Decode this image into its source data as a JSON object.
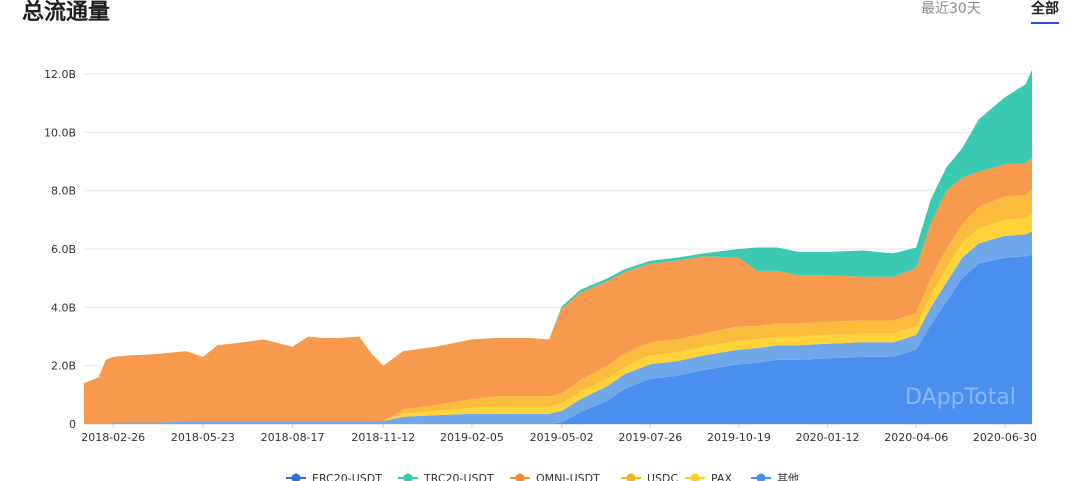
{
  "header": {
    "title": "总流通量",
    "tabs": [
      {
        "label": "最近30天",
        "active": false
      },
      {
        "label": "全部",
        "active": true
      }
    ]
  },
  "watermark": "DAppTotal",
  "chart_data": {
    "type": "area",
    "stacked": true,
    "title": "",
    "xlabel": "",
    "ylabel": "",
    "ylim": [
      0,
      12
    ],
    "y_unit": "B",
    "y_ticks": [
      "0",
      "2.0B",
      "4.0B",
      "6.0B",
      "8.0B",
      "10.0B",
      "12.0B"
    ],
    "x_ticks": [
      "2018-02-26",
      "2018-05-23",
      "2018-08-17",
      "2018-11-12",
      "2019-02-05",
      "2019-05-02",
      "2019-07-26",
      "2019-10-19",
      "2020-01-12",
      "2020-04-06",
      "2020-06-30"
    ],
    "grid": "horizontal",
    "legend_position": "bottom",
    "x": [
      "2018-01-29",
      "2018-02-05",
      "2018-02-12",
      "2018-02-19",
      "2018-02-26",
      "2018-03-12",
      "2018-04-09",
      "2018-05-07",
      "2018-05-23",
      "2018-06-06",
      "2018-07-01",
      "2018-07-20",
      "2018-08-17",
      "2018-09-01",
      "2018-09-15",
      "2018-10-01",
      "2018-10-20",
      "2018-11-01",
      "2018-11-12",
      "2018-12-01",
      "2019-01-01",
      "2019-02-05",
      "2019-03-01",
      "2019-04-01",
      "2019-04-20",
      "2019-05-02",
      "2019-05-20",
      "2019-06-15",
      "2019-07-01",
      "2019-07-26",
      "2019-08-20",
      "2019-09-15",
      "2019-10-19",
      "2019-11-05",
      "2019-11-25",
      "2019-12-15",
      "2020-01-12",
      "2020-02-15",
      "2020-03-15",
      "2020-04-06",
      "2020-04-20",
      "2020-05-05",
      "2020-05-20",
      "2020-06-05",
      "2020-06-30",
      "2020-07-20",
      "2020-07-26"
    ],
    "series": [
      {
        "name": "ERC20-USDT",
        "color": "#2f6fd1",
        "values": [
          0,
          0,
          0,
          0,
          0,
          0,
          0,
          0,
          0,
          0,
          0,
          0,
          0,
          0,
          0,
          0,
          0,
          0,
          0,
          0,
          0,
          0,
          0,
          0,
          0,
          0,
          0,
          0,
          0,
          0,
          0,
          0,
          0,
          0,
          0,
          0,
          0,
          0,
          0,
          0,
          0,
          0,
          0,
          0,
          0,
          0,
          0
        ]
      },
      {
        "name": "TRC20-USDT",
        "color": "#3cc9b2",
        "values": [
          0,
          0,
          0,
          0,
          0,
          0,
          0,
          0,
          0,
          0,
          0,
          0,
          0,
          0,
          0,
          0,
          0,
          0,
          0,
          0,
          0,
          0,
          0,
          0,
          0,
          0.08,
          0.1,
          0.1,
          0.1,
          0.1,
          0.1,
          0.1,
          0.3,
          0.8,
          0.8,
          0.8,
          0.8,
          0.9,
          0.8,
          0.7,
          0.8,
          0.8,
          1.0,
          1.8,
          2.3,
          2.7,
          3.0
        ]
      },
      {
        "name": "OMNI-USDT",
        "color": "#f79a4d",
        "values": [
          1.4,
          1.5,
          1.6,
          2.2,
          2.25,
          2.3,
          2.35,
          2.4,
          2.2,
          2.6,
          2.7,
          2.8,
          2.55,
          2.9,
          2.85,
          2.85,
          2.9,
          2.3,
          1.9,
          2.0,
          2.0,
          2.05,
          2.0,
          2.0,
          1.95,
          2.9,
          3.0,
          2.9,
          2.8,
          2.7,
          2.7,
          2.65,
          2.35,
          1.9,
          1.8,
          1.65,
          1.6,
          1.5,
          1.5,
          1.55,
          1.9,
          2.0,
          1.6,
          1.2,
          1.1,
          1.1,
          1.1
        ]
      },
      {
        "name": "USDC",
        "color": "#fbbc3d",
        "values": [
          0,
          0,
          0,
          0,
          0,
          0,
          0,
          0,
          0,
          0,
          0,
          0,
          0,
          0,
          0,
          0,
          0,
          0,
          0,
          0.15,
          0.2,
          0.3,
          0.35,
          0.35,
          0.35,
          0.35,
          0.4,
          0.45,
          0.45,
          0.45,
          0.45,
          0.45,
          0.5,
          0.45,
          0.45,
          0.45,
          0.45,
          0.45,
          0.45,
          0.45,
          0.6,
          0.65,
          0.65,
          0.75,
          0.8,
          0.8,
          0.85
        ]
      },
      {
        "name": "PAX",
        "color": "#ffd43b",
        "values": [
          0,
          0,
          0,
          0,
          0,
          0,
          0,
          0,
          0,
          0,
          0,
          0,
          0,
          0,
          0,
          0,
          0,
          0,
          0,
          0.1,
          0.15,
          0.2,
          0.25,
          0.25,
          0.25,
          0.25,
          0.25,
          0.25,
          0.25,
          0.3,
          0.3,
          0.3,
          0.3,
          0.3,
          0.3,
          0.3,
          0.3,
          0.3,
          0.3,
          0.3,
          0.4,
          0.5,
          0.5,
          0.5,
          0.55,
          0.55,
          0.6
        ]
      },
      {
        "name": "其他",
        "color": "#6fa7e8",
        "values": [
          0,
          0,
          0,
          0,
          0.05,
          0.05,
          0.05,
          0.1,
          0.1,
          0.1,
          0.1,
          0.1,
          0.1,
          0.1,
          0.1,
          0.1,
          0.1,
          0.1,
          0.1,
          0.25,
          0.3,
          0.35,
          0.35,
          0.35,
          0.35,
          0.4,
          0.45,
          0.5,
          0.5,
          0.5,
          0.5,
          0.5,
          0.5,
          0.5,
          0.5,
          0.5,
          0.5,
          0.5,
          0.5,
          0.5,
          0.6,
          0.65,
          0.7,
          0.7,
          0.75,
          0.75,
          0.8
        ]
      },
      {
        "name": "ERC20-USDT (main)",
        "color": "#4a8ff0",
        "legend": false,
        "values": [
          0,
          0,
          0,
          0,
          0,
          0,
          0,
          0,
          0,
          0,
          0,
          0,
          0,
          0,
          0,
          0,
          0,
          0,
          0,
          0,
          0,
          0,
          0,
          0,
          0,
          0.05,
          0.4,
          0.8,
          1.2,
          1.55,
          1.65,
          1.85,
          2.05,
          2.1,
          2.2,
          2.2,
          2.25,
          2.3,
          2.3,
          2.55,
          3.4,
          4.2,
          5.0,
          5.5,
          5.7,
          5.75,
          5.8
        ]
      }
    ],
    "legend": [
      {
        "name": "ERC20-USDT",
        "color": "#2f6fd1"
      },
      {
        "name": "TRC20-USDT",
        "color": "#3cc9b2"
      },
      {
        "name": "OMNI-USDT",
        "color": "#f58a2e"
      },
      {
        "name": "USDC",
        "color": "#f5b321"
      },
      {
        "name": "PAX",
        "color": "#f5d21f"
      },
      {
        "name": "其他",
        "color": "#4a8ff0"
      }
    ]
  }
}
